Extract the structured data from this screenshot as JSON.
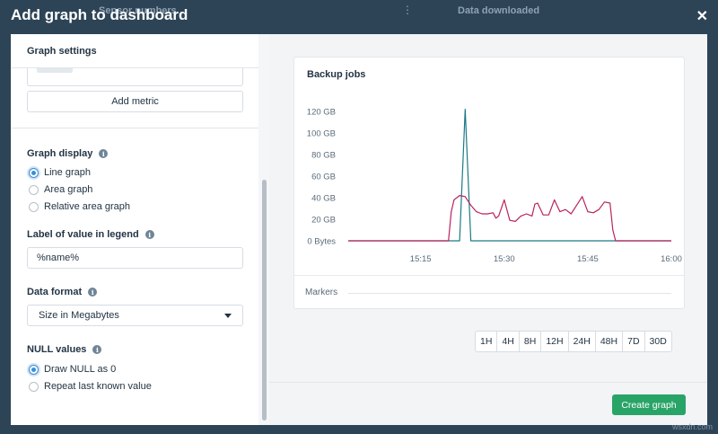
{
  "backdrop": {
    "item1": "Sensor numbers",
    "item2": "Data downloaded",
    "menu_glyph": "⋮"
  },
  "modal": {
    "title": "Add graph to dashboard",
    "close_glyph": "✕"
  },
  "settings": {
    "header": "Graph settings",
    "add_metric_label": "Add metric",
    "graph_display": {
      "label": "Graph display",
      "options": [
        "Line graph",
        "Area graph",
        "Relative area graph"
      ],
      "selected": "Line graph"
    },
    "legend_label": {
      "label": "Label of value in legend",
      "value": "%name%"
    },
    "data_format": {
      "label": "Data format",
      "selected": "Size in Megabytes"
    },
    "null_values": {
      "label": "NULL values",
      "options": [
        "Draw NULL as 0",
        "Repeat last known value"
      ],
      "selected": "Draw NULL as 0"
    },
    "info_glyph": "i"
  },
  "preview": {
    "markers_label": "Markers",
    "ranges": [
      "1H",
      "4H",
      "8H",
      "12H",
      "24H",
      "48H",
      "7D",
      "30D"
    ],
    "create_button": "Create graph"
  },
  "watermark": "wsxdn.com",
  "colors": {
    "accent_blue": "#3a8ed6",
    "series_teal": "#1b7a86",
    "series_crimson": "#b8235c",
    "create_green": "#29a467"
  },
  "chart_data": {
    "type": "line",
    "title": "Backup jobs",
    "x_ticks": [
      "15:15",
      "15:30",
      "15:45",
      "16:00"
    ],
    "y_ticks": [
      "0 Bytes",
      "20 GB",
      "40 GB",
      "60 GB",
      "80 GB",
      "100 GB",
      "120 GB"
    ],
    "xlim": [
      "15:02",
      "16:00"
    ],
    "ylim": [
      0,
      120
    ],
    "y_unit": "GB",
    "series": [
      {
        "color": "#1b7a86",
        "points": [
          [
            "15:02",
            0
          ],
          [
            "15:20",
            0
          ],
          [
            "15:22",
            0
          ],
          [
            "15:23",
            122
          ],
          [
            "15:24",
            0
          ],
          [
            "16:00",
            0
          ]
        ]
      },
      {
        "color": "#b8235c",
        "points": [
          [
            "15:02",
            0
          ],
          [
            "15:20",
            0
          ],
          [
            "15:20.5",
            27
          ],
          [
            "15:21",
            38
          ],
          [
            "15:22",
            42
          ],
          [
            "15:23",
            41
          ],
          [
            "15:24",
            33
          ],
          [
            "15:25",
            27
          ],
          [
            "15:26",
            25
          ],
          [
            "15:27",
            25
          ],
          [
            "15:28",
            26
          ],
          [
            "15:28.5",
            21
          ],
          [
            "15:29",
            23
          ],
          [
            "15:30",
            38
          ],
          [
            "15:31",
            19
          ],
          [
            "15:32",
            18
          ],
          [
            "15:33",
            23
          ],
          [
            "15:34",
            25
          ],
          [
            "15:35",
            23
          ],
          [
            "15:35.5",
            34
          ],
          [
            "15:36",
            35
          ],
          [
            "15:37",
            24
          ],
          [
            "15:38",
            24
          ],
          [
            "15:39",
            38
          ],
          [
            "15:40",
            27
          ],
          [
            "15:41",
            29
          ],
          [
            "15:42",
            25
          ],
          [
            "15:43",
            33
          ],
          [
            "15:44",
            41
          ],
          [
            "15:45",
            27
          ],
          [
            "15:46",
            26
          ],
          [
            "15:47",
            29
          ],
          [
            "15:48",
            36
          ],
          [
            "15:49",
            35
          ],
          [
            "15:49.5",
            10
          ],
          [
            "15:50",
            0
          ],
          [
            "16:00",
            0
          ]
        ]
      }
    ]
  }
}
